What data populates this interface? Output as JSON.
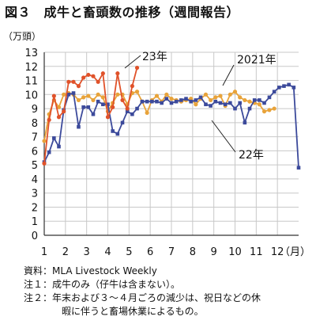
{
  "title": "図３　成牛と畜頭数の推移（週間報告）",
  "notes": {
    "source": "資料：MLA Livestock Weekly",
    "note1": "注１：成牛のみ（仔牛は含まない）。",
    "note2_label": "注２：",
    "note2_line1": "年末および３～４月ごろの減少は、祝日などの休",
    "note2_line2": "暇に伴うと畜場休業によるもの。"
  },
  "colors": {
    "s2021": "#e8a33a",
    "s22": "#3c4a9b",
    "s23": "#e0522a",
    "grid": "#c8c8c8"
  },
  "chart_data": {
    "type": "line",
    "title": "",
    "ylabel": "（万頭）",
    "xlabel": "（月）",
    "ylim": [
      0,
      13
    ],
    "yticks": [
      0,
      1,
      2,
      3,
      4,
      5,
      6,
      7,
      8,
      9,
      10,
      11,
      12,
      13
    ],
    "xlim": [
      1,
      13
    ],
    "xticks": [
      1,
      2,
      3,
      4,
      5,
      6,
      7,
      8,
      9,
      10,
      11,
      12
    ],
    "xtick_labels": [
      "1",
      "2",
      "3",
      "4",
      "5",
      "6",
      "7",
      "8",
      "9",
      "10",
      "11",
      "12"
    ],
    "grid": true,
    "series": [
      {
        "name": "2021年",
        "key": "s2021",
        "marker": "circle",
        "x": [
          1.0,
          1.23,
          1.46,
          1.69,
          1.92,
          2.15,
          2.38,
          2.62,
          2.85,
          3.08,
          3.31,
          3.54,
          3.77,
          4.0,
          4.23,
          4.46,
          4.69,
          4.92,
          5.15,
          5.38,
          5.62,
          5.85,
          6.08,
          6.31,
          6.54,
          6.77,
          7.0,
          7.23,
          7.46,
          7.69,
          7.92,
          8.15,
          8.38,
          8.62,
          8.85,
          9.08,
          9.31,
          9.54,
          9.77,
          10.0,
          10.23,
          10.46,
          10.69,
          10.92,
          11.15,
          11.38,
          11.62,
          11.85
        ],
        "values": [
          6.7,
          8.6,
          9.6,
          9.1,
          10.0,
          10.1,
          10.0,
          9.6,
          9.8,
          9.9,
          9.6,
          10.0,
          9.8,
          8.8,
          9.4,
          10.0,
          10.0,
          9.3,
          10.1,
          10.2,
          9.5,
          8.7,
          9.6,
          9.9,
          9.5,
          10.0,
          9.7,
          9.6,
          9.5,
          9.6,
          9.7,
          9.3,
          9.7,
          10.0,
          9.6,
          9.8,
          9.9,
          9.2,
          10.0,
          10.2,
          9.8,
          9.6,
          9.5,
          9.4,
          9.3,
          8.8,
          8.9,
          9.0
        ]
      },
      {
        "name": "22年",
        "key": "s22",
        "marker": "square",
        "x": [
          1.0,
          1.23,
          1.46,
          1.69,
          1.92,
          2.15,
          2.38,
          2.62,
          2.85,
          3.08,
          3.31,
          3.54,
          3.77,
          4.0,
          4.23,
          4.46,
          4.69,
          4.92,
          5.15,
          5.38,
          5.62,
          5.85,
          6.08,
          6.31,
          6.54,
          6.77,
          7.0,
          7.23,
          7.46,
          7.69,
          7.92,
          8.15,
          8.38,
          8.62,
          8.85,
          9.08,
          9.31,
          9.54,
          9.77,
          10.0,
          10.23,
          10.46,
          10.69,
          10.92,
          11.15,
          11.38,
          11.62,
          11.85,
          12.08,
          12.31,
          12.54,
          12.77,
          13.0
        ],
        "values": [
          5.2,
          5.9,
          6.9,
          6.3,
          8.9,
          10.0,
          10.1,
          7.7,
          9.1,
          9.1,
          8.6,
          9.5,
          9.3,
          9.3,
          7.4,
          7.2,
          8.0,
          8.8,
          8.6,
          9.0,
          9.5,
          9.5,
          9.5,
          9.5,
          9.4,
          9.7,
          9.4,
          9.5,
          9.6,
          9.7,
          9.5,
          9.6,
          9.8,
          9.3,
          9.2,
          9.5,
          9.4,
          9.3,
          9.4,
          9.0,
          9.4,
          8.0,
          9.0,
          9.6,
          9.6,
          9.4,
          9.8,
          10.2,
          10.5,
          10.6,
          10.7,
          10.5,
          4.8
        ]
      },
      {
        "name": "23年",
        "key": "s23",
        "marker": "circle",
        "x": [
          1.0,
          1.23,
          1.46,
          1.69,
          1.92,
          2.15,
          2.38,
          2.62,
          2.85,
          3.08,
          3.31,
          3.54,
          3.77,
          4.0,
          4.23,
          4.46,
          4.69,
          4.92,
          5.15,
          5.38
        ],
        "values": [
          5.1,
          8.2,
          9.9,
          8.4,
          8.8,
          10.9,
          10.9,
          10.6,
          11.2,
          11.4,
          11.3,
          10.9,
          11.5,
          8.4,
          9.1,
          11.5,
          9.6,
          9.0,
          10.6,
          11.9
        ]
      }
    ],
    "annotations": [
      {
        "label": "23年",
        "series": "s23"
      },
      {
        "label": "2021年",
        "series": "s2021"
      },
      {
        "label": "22年",
        "series": "s22"
      }
    ]
  }
}
